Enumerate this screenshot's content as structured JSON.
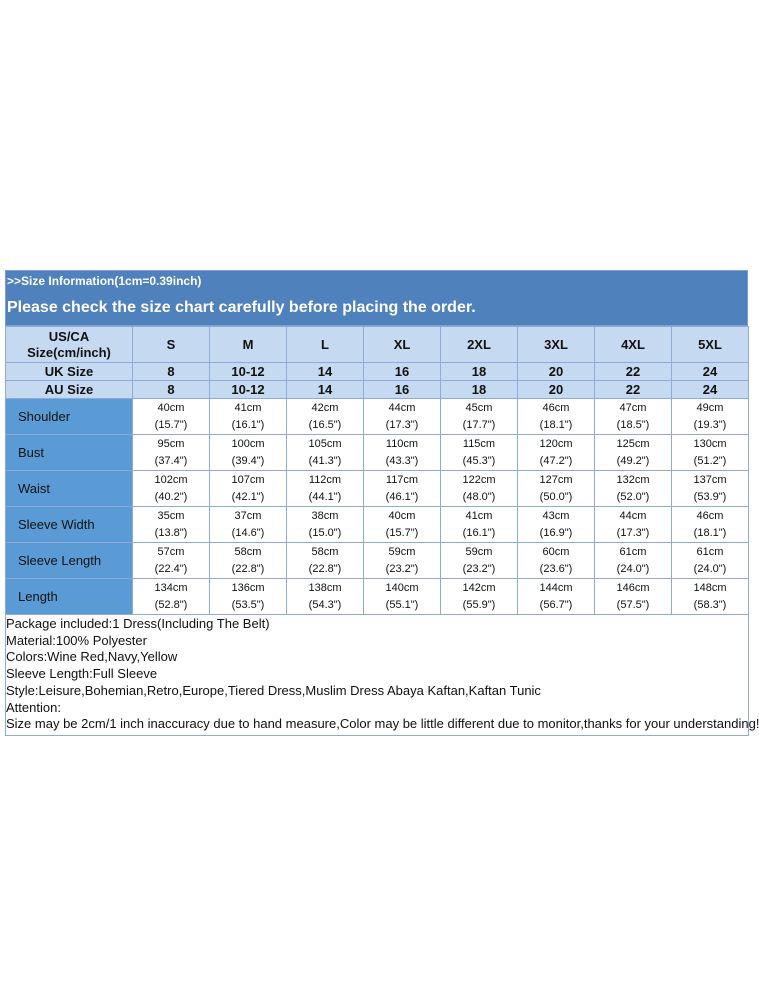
{
  "header": {
    "info": ">>Size Information(1cm=0.39inch)",
    "notice": "Please check the size chart carefully before placing the order."
  },
  "table": {
    "corner": [
      "US/CA",
      "Size(cm/inch)"
    ],
    "columns": [
      "S",
      "M",
      "L",
      "XL",
      "2XL",
      "3XL",
      "4XL",
      "5XL"
    ],
    "size_rows": [
      {
        "label": "UK Size",
        "values": [
          "8",
          "10-12",
          "14",
          "16",
          "18",
          "20",
          "22",
          "24"
        ]
      },
      {
        "label": "AU Size",
        "values": [
          "8",
          "10-12",
          "14",
          "16",
          "18",
          "20",
          "22",
          "24"
        ]
      }
    ],
    "measure_rows": [
      {
        "label": "Shoulder",
        "cm": [
          "40cm",
          "41cm",
          "42cm",
          "44cm",
          "45cm",
          "46cm",
          "47cm",
          "49cm"
        ],
        "inch": [
          "(15.7\")",
          "(16.1\")",
          "(16.5\")",
          "(17.3\")",
          "(17.7\")",
          "(18.1\")",
          "(18.5\")",
          "(19.3\")"
        ]
      },
      {
        "label": "Bust",
        "cm": [
          "95cm",
          "100cm",
          "105cm",
          "110cm",
          "115cm",
          "120cm",
          "125cm",
          "130cm"
        ],
        "inch": [
          "(37.4\")",
          "(39.4\")",
          "(41.3\")",
          "(43.3\")",
          "(45.3\")",
          "(47.2\")",
          "(49.2\")",
          "(51.2\")"
        ]
      },
      {
        "label": "Waist",
        "cm": [
          "102cm",
          "107cm",
          "112cm",
          "117cm",
          "122cm",
          "127cm",
          "132cm",
          "137cm"
        ],
        "inch": [
          "(40.2\")",
          "(42.1\")",
          "(44.1\")",
          "(46.1\")",
          "(48.0\")",
          "(50.0\")",
          "(52.0\")",
          "(53.9\")"
        ]
      },
      {
        "label": "Sleeve Width",
        "cm": [
          "35cm",
          "37cm",
          "38cm",
          "40cm",
          "41cm",
          "43cm",
          "44cm",
          "46cm"
        ],
        "inch": [
          "(13.8\")",
          "(14.6\")",
          "(15.0\")",
          "(15.7\")",
          "(16.1\")",
          "(16.9\")",
          "(17.3\")",
          "(18.1\")"
        ]
      },
      {
        "label": "Sleeve Length",
        "cm": [
          "57cm",
          "58cm",
          "58cm",
          "59cm",
          "59cm",
          "60cm",
          "61cm",
          "61cm"
        ],
        "inch": [
          "(22.4\")",
          "(22.8\")",
          "(22.8\")",
          "(23.2\")",
          "(23.2\")",
          "(23.6\")",
          "(24.0\")",
          "(24.0\")"
        ]
      },
      {
        "label": "Length",
        "cm": [
          "134cm",
          "136cm",
          "138cm",
          "140cm",
          "142cm",
          "144cm",
          "146cm",
          "148cm"
        ],
        "inch": [
          "(52.8\")",
          "(53.5\")",
          "(54.3\")",
          "(55.1\")",
          "(55.9\")",
          "(56.7\")",
          "(57.5\")",
          "(58.3\")"
        ]
      }
    ]
  },
  "notes": [
    "Package included:1 Dress(Including The Belt)",
    "Material:100% Polyester",
    "Colors:Wine Red,Navy,Yellow",
    "Sleeve Length:Full Sleeve",
    "Style:Leisure,Bohemian,Retro,Europe,Tiered Dress,Muslim Dress Abaya Kaftan,Kaftan Tunic",
    "Attention:",
    "Size may be 2cm/1 inch inaccuracy due to hand measure,Color may be little different due to monitor,thanks for your understanding!"
  ]
}
